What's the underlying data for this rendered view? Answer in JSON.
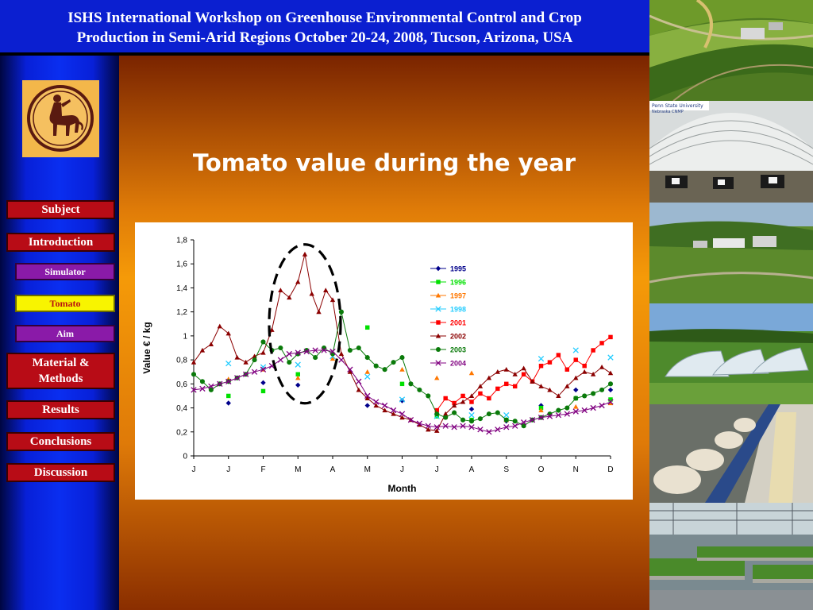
{
  "header": {
    "line1": "ISHS International Workshop on Greenhouse Environmental Control and Crop",
    "line2": "Production in Semi-Arid Regions October 20-24, 2008, Tucson, Arizona, USA"
  },
  "nav": {
    "subject": "Subject",
    "introduction": "Introduction",
    "simulator": "Simulator",
    "tomato": "Tomato",
    "aim": "Aim",
    "material_methods_1": "Material &",
    "material_methods_2": "Methods",
    "results": "Results",
    "conclusions": "Conclusions",
    "discussion": "Discussion"
  },
  "slide": {
    "title": "Tomato value during the year"
  },
  "photos": {
    "photo2_caption_1": "Penn State University",
    "photo2_caption_2": "Nebraska CNMP"
  },
  "colors": {
    "header_bg": "#0b1fd0",
    "nav_red": "#b80c16",
    "nav_purple": "#8a1aa8",
    "nav_active": "#f8f400",
    "title_text": "#ffffff"
  },
  "chart_data": {
    "type": "scatter",
    "xlabel": "Month",
    "ylabel": "Value € / kg",
    "ylim": [
      0,
      1.8
    ],
    "yticks": [
      "0",
      "0,2",
      "0,4",
      "0,6",
      "0,8",
      "1",
      "1,2",
      "1,4",
      "1,6",
      "1,8"
    ],
    "xticks": [
      "J",
      "J",
      "F",
      "M",
      "A",
      "M",
      "J",
      "J",
      "A",
      "S",
      "O",
      "N",
      "D"
    ],
    "legend_position": "top-right",
    "series": [
      {
        "name": "1995",
        "color": "#00008b",
        "marker": "diamond",
        "points": [
          [
            1,
            0.44
          ],
          [
            2,
            0.61
          ],
          [
            3,
            0.59
          ],
          [
            5,
            0.42
          ],
          [
            6,
            0.46
          ],
          [
            8,
            0.39
          ],
          [
            9,
            0.29
          ],
          [
            10,
            0.42
          ],
          [
            11,
            0.55
          ],
          [
            12,
            0.55
          ]
        ]
      },
      {
        "name": "1996",
        "color": "#00e000",
        "marker": "square",
        "points": [
          [
            1,
            0.5
          ],
          [
            2,
            0.54
          ],
          [
            3,
            0.68
          ],
          [
            5,
            1.07
          ],
          [
            6,
            0.6
          ],
          [
            7,
            0.33
          ],
          [
            8,
            0.3
          ],
          [
            9,
            0.3
          ],
          [
            10,
            0.4
          ],
          [
            11,
            0.48
          ],
          [
            12,
            0.47
          ]
        ]
      },
      {
        "name": "1997",
        "color": "#ff7700",
        "marker": "triangle",
        "points": [
          [
            1,
            0.64
          ],
          [
            2,
            0.72
          ],
          [
            3,
            0.65
          ],
          [
            4,
            0.81
          ],
          [
            5,
            0.7
          ],
          [
            6,
            0.72
          ],
          [
            7,
            0.65
          ],
          [
            8,
            0.69
          ],
          [
            9,
            0.3
          ],
          [
            10,
            0.38
          ],
          [
            11,
            0.41
          ],
          [
            12,
            0.44
          ]
        ]
      },
      {
        "name": "1998",
        "color": "#22ccff",
        "marker": "x",
        "points": [
          [
            1,
            0.77
          ],
          [
            2,
            0.74
          ],
          [
            3,
            0.76
          ],
          [
            4,
            0.83
          ],
          [
            5,
            0.66
          ],
          [
            6,
            0.47
          ],
          [
            7,
            0.33
          ],
          [
            8,
            0.34
          ],
          [
            9,
            0.34
          ],
          [
            10,
            0.81
          ],
          [
            11,
            0.88
          ],
          [
            12,
            0.82
          ]
        ]
      },
      {
        "name": "2001",
        "color": "#ff0000",
        "marker": "square",
        "line": true,
        "points": [
          [
            7,
            0.38
          ],
          [
            7.25,
            0.48
          ],
          [
            7.5,
            0.44
          ],
          [
            7.75,
            0.5
          ],
          [
            8,
            0.45
          ],
          [
            8.25,
            0.52
          ],
          [
            8.5,
            0.48
          ],
          [
            8.75,
            0.56
          ],
          [
            9,
            0.6
          ],
          [
            9.25,
            0.58
          ],
          [
            9.5,
            0.68
          ],
          [
            9.75,
            0.62
          ],
          [
            10,
            0.75
          ],
          [
            10.25,
            0.78
          ],
          [
            10.5,
            0.84
          ],
          [
            10.75,
            0.72
          ],
          [
            11,
            0.8
          ],
          [
            11.25,
            0.75
          ],
          [
            11.5,
            0.88
          ],
          [
            11.75,
            0.94
          ],
          [
            12,
            0.99
          ]
        ]
      },
      {
        "name": "2002",
        "color": "#8b0000",
        "marker": "triangle",
        "line": true,
        "points": [
          [
            0,
            0.78
          ],
          [
            0.25,
            0.88
          ],
          [
            0.5,
            0.93
          ],
          [
            0.75,
            1.08
          ],
          [
            1,
            1.02
          ],
          [
            1.25,
            0.82
          ],
          [
            1.5,
            0.78
          ],
          [
            1.75,
            0.83
          ],
          [
            2,
            0.86
          ],
          [
            2.25,
            1.05
          ],
          [
            2.5,
            1.38
          ],
          [
            2.75,
            1.32
          ],
          [
            3,
            1.45
          ],
          [
            3.2,
            1.68
          ],
          [
            3.4,
            1.35
          ],
          [
            3.6,
            1.2
          ],
          [
            3.8,
            1.38
          ],
          [
            4,
            1.3
          ],
          [
            4.25,
            0.85
          ],
          [
            4.5,
            0.7
          ],
          [
            4.75,
            0.55
          ],
          [
            5,
            0.48
          ],
          [
            5.25,
            0.42
          ],
          [
            5.5,
            0.38
          ],
          [
            5.75,
            0.35
          ],
          [
            6,
            0.32
          ],
          [
            6.25,
            0.3
          ],
          [
            6.5,
            0.26
          ],
          [
            6.75,
            0.22
          ],
          [
            7,
            0.21
          ],
          [
            7.25,
            0.35
          ],
          [
            7.5,
            0.42
          ],
          [
            7.75,
            0.45
          ],
          [
            8,
            0.5
          ],
          [
            8.25,
            0.58
          ],
          [
            8.5,
            0.65
          ],
          [
            8.75,
            0.7
          ],
          [
            9,
            0.72
          ],
          [
            9.25,
            0.68
          ],
          [
            9.5,
            0.73
          ],
          [
            9.75,
            0.62
          ],
          [
            10,
            0.58
          ],
          [
            10.25,
            0.55
          ],
          [
            10.5,
            0.5
          ],
          [
            10.75,
            0.58
          ],
          [
            11,
            0.65
          ],
          [
            11.25,
            0.7
          ],
          [
            11.5,
            0.68
          ],
          [
            11.75,
            0.74
          ],
          [
            12,
            0.69
          ]
        ]
      },
      {
        "name": "2003",
        "color": "#0a7a0a",
        "marker": "circle",
        "line": true,
        "points": [
          [
            0,
            0.68
          ],
          [
            0.25,
            0.62
          ],
          [
            0.5,
            0.55
          ],
          [
            0.75,
            0.6
          ],
          [
            1,
            0.62
          ],
          [
            1.25,
            0.65
          ],
          [
            1.5,
            0.68
          ],
          [
            1.75,
            0.8
          ],
          [
            2,
            0.95
          ],
          [
            2.25,
            0.88
          ],
          [
            2.5,
            0.9
          ],
          [
            2.75,
            0.78
          ],
          [
            3,
            0.85
          ],
          [
            3.25,
            0.88
          ],
          [
            3.5,
            0.82
          ],
          [
            3.75,
            0.9
          ],
          [
            4,
            0.85
          ],
          [
            4.25,
            1.2
          ],
          [
            4.5,
            0.88
          ],
          [
            4.75,
            0.9
          ],
          [
            5,
            0.82
          ],
          [
            5.25,
            0.75
          ],
          [
            5.5,
            0.72
          ],
          [
            5.75,
            0.78
          ],
          [
            6,
            0.82
          ],
          [
            6.25,
            0.6
          ],
          [
            6.5,
            0.55
          ],
          [
            6.75,
            0.5
          ],
          [
            7,
            0.35
          ],
          [
            7.25,
            0.32
          ],
          [
            7.5,
            0.36
          ],
          [
            7.75,
            0.3
          ],
          [
            8,
            0.29
          ],
          [
            8.25,
            0.31
          ],
          [
            8.5,
            0.35
          ],
          [
            8.75,
            0.36
          ],
          [
            9,
            0.3
          ],
          [
            9.25,
            0.29
          ],
          [
            9.5,
            0.25
          ],
          [
            9.75,
            0.3
          ],
          [
            10,
            0.32
          ],
          [
            10.25,
            0.35
          ],
          [
            10.5,
            0.38
          ],
          [
            10.75,
            0.4
          ],
          [
            11,
            0.48
          ],
          [
            11.25,
            0.5
          ],
          [
            11.5,
            0.52
          ],
          [
            11.75,
            0.55
          ],
          [
            12,
            0.6
          ]
        ]
      },
      {
        "name": "2004",
        "color": "#800080",
        "marker": "x",
        "line": true,
        "points": [
          [
            0,
            0.55
          ],
          [
            0.25,
            0.56
          ],
          [
            0.5,
            0.58
          ],
          [
            0.75,
            0.6
          ],
          [
            1,
            0.62
          ],
          [
            1.25,
            0.65
          ],
          [
            1.5,
            0.68
          ],
          [
            1.75,
            0.7
          ],
          [
            2,
            0.72
          ],
          [
            2.25,
            0.75
          ],
          [
            2.5,
            0.8
          ],
          [
            2.75,
            0.85
          ],
          [
            3,
            0.86
          ],
          [
            3.25,
            0.87
          ],
          [
            3.5,
            0.88
          ],
          [
            3.75,
            0.88
          ],
          [
            4,
            0.87
          ],
          [
            4.25,
            0.8
          ],
          [
            4.5,
            0.72
          ],
          [
            4.75,
            0.62
          ],
          [
            5,
            0.5
          ],
          [
            5.25,
            0.45
          ],
          [
            5.5,
            0.42
          ],
          [
            5.75,
            0.38
          ],
          [
            6,
            0.35
          ],
          [
            6.25,
            0.3
          ],
          [
            6.5,
            0.27
          ],
          [
            6.75,
            0.25
          ],
          [
            7,
            0.24
          ],
          [
            7.25,
            0.25
          ],
          [
            7.5,
            0.24
          ],
          [
            7.75,
            0.25
          ],
          [
            8,
            0.24
          ],
          [
            8.25,
            0.22
          ],
          [
            8.5,
            0.2
          ],
          [
            8.75,
            0.22
          ],
          [
            9,
            0.24
          ],
          [
            9.25,
            0.25
          ],
          [
            9.5,
            0.28
          ],
          [
            9.75,
            0.3
          ],
          [
            10,
            0.32
          ],
          [
            10.25,
            0.33
          ],
          [
            10.5,
            0.34
          ],
          [
            10.75,
            0.35
          ],
          [
            11,
            0.37
          ],
          [
            11.25,
            0.38
          ],
          [
            11.5,
            0.4
          ],
          [
            11.75,
            0.42
          ],
          [
            12,
            0.45
          ]
        ]
      }
    ]
  }
}
